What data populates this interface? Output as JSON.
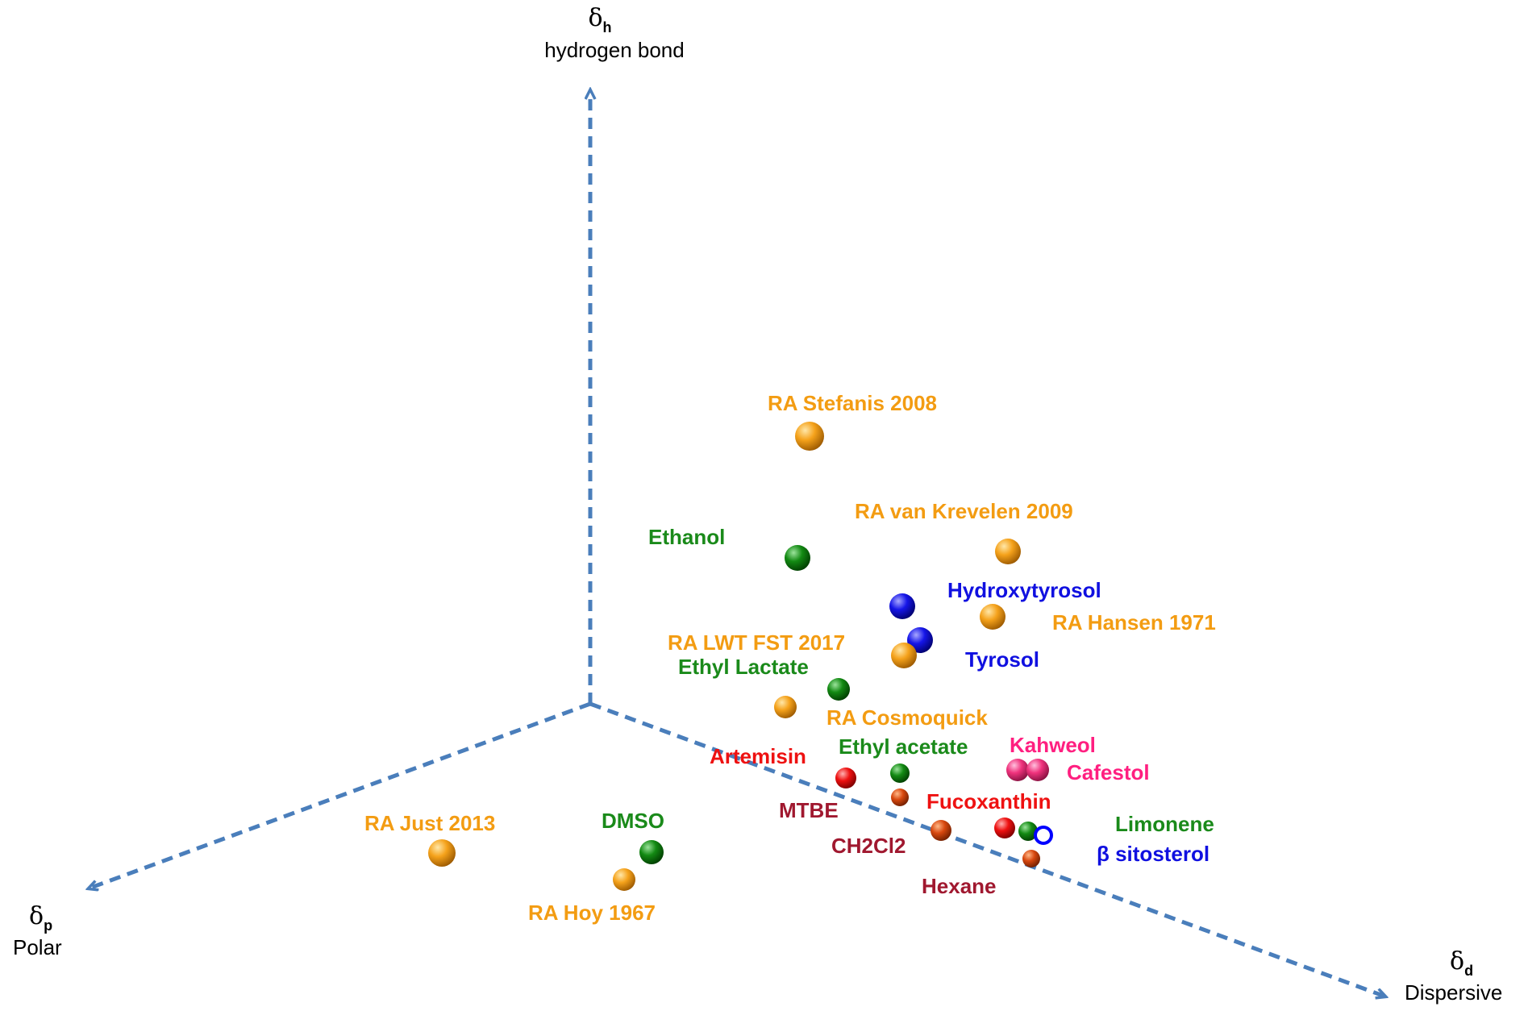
{
  "axes": {
    "h": {
      "symbol": "δ",
      "subscript": "h",
      "name": "hydrogen bond"
    },
    "p": {
      "symbol": "δ",
      "subscript": "p",
      "name": "Polar"
    },
    "d": {
      "symbol": "δ",
      "subscript": "d",
      "name": "Dispersive"
    }
  },
  "colors": {
    "axis": "#4a7ebb",
    "orange": "#ff9900",
    "green": "#008000",
    "blue": "#0000ff",
    "red": "#ff0000",
    "pink": "#ff3399",
    "maroon": "#a50021"
  },
  "labels": [
    {
      "text": "RA Stefanis 2008",
      "color": "#f39c12"
    },
    {
      "text": "RA van Krevelen 2009",
      "color": "#f39c12"
    },
    {
      "text": "Ethanol",
      "color": "#1a8a1a"
    },
    {
      "text": "Hydroxytyrosol",
      "color": "#1010e0"
    },
    {
      "text": "RA Hansen 1971",
      "color": "#f39c12"
    },
    {
      "text": "RA LWT FST 2017",
      "color": "#f39c12"
    },
    {
      "text": "Tyrosol",
      "color": "#1010e0"
    },
    {
      "text": "Ethyl Lactate",
      "color": "#1a8a1a"
    },
    {
      "text": "RA Cosmoquick",
      "color": "#f39c12"
    },
    {
      "text": "Artemisin",
      "color": "#ee1111"
    },
    {
      "text": "Ethyl acetate",
      "color": "#1a8a1a"
    },
    {
      "text": "Kahweol",
      "color": "#ff1f80"
    },
    {
      "text": "Cafestol",
      "color": "#ff1f80"
    },
    {
      "text": "MTBE",
      "color": "#a0182f"
    },
    {
      "text": "Fucoxanthin",
      "color": "#ee1111"
    },
    {
      "text": "Limonene",
      "color": "#1a8a1a"
    },
    {
      "text": "β sitosterol",
      "color": "#1010e0"
    },
    {
      "text": "CH2Cl2",
      "color": "#a0182f"
    },
    {
      "text": "Hexane",
      "color": "#a0182f"
    },
    {
      "text": "RA Just 2013",
      "color": "#f39c12"
    },
    {
      "text": "DMSO",
      "color": "#1a8a1a"
    },
    {
      "text": "RA Hoy 1967",
      "color": "#f39c12"
    }
  ],
  "markers": [
    {
      "name": "ra-stefanis-2008",
      "color": "orange",
      "style": "filled"
    },
    {
      "name": "ra-van-krevelen-2009",
      "color": "orange",
      "style": "filled"
    },
    {
      "name": "ethanol",
      "color": "green",
      "style": "filled"
    },
    {
      "name": "hydroxytyrosol",
      "color": "blue",
      "style": "filled"
    },
    {
      "name": "ra-hansen-1971",
      "color": "orange",
      "style": "filled"
    },
    {
      "name": "tyrosol",
      "color": "blue",
      "style": "filled"
    },
    {
      "name": "ra-lwt-fst-2017",
      "color": "orange",
      "style": "filled"
    },
    {
      "name": "ethyl-lactate",
      "color": "green",
      "style": "filled"
    },
    {
      "name": "ra-cosmoquick",
      "color": "orange",
      "style": "filled"
    },
    {
      "name": "artemisin",
      "color": "red",
      "style": "filled"
    },
    {
      "name": "ethyl-acetate",
      "color": "green",
      "style": "filled"
    },
    {
      "name": "mtbe",
      "color": "darkorange",
      "style": "filled"
    },
    {
      "name": "kahweol",
      "color": "pink",
      "style": "filled"
    },
    {
      "name": "cafestol",
      "color": "pink",
      "style": "filled"
    },
    {
      "name": "ch2cl2",
      "color": "darkorange",
      "style": "filled"
    },
    {
      "name": "fucoxanthin",
      "color": "red",
      "style": "filled"
    },
    {
      "name": "limonene",
      "color": "green",
      "style": "filled"
    },
    {
      "name": "beta-sitosterol",
      "color": "blue",
      "style": "ring"
    },
    {
      "name": "hexane",
      "color": "darkorange",
      "style": "filled"
    },
    {
      "name": "ra-just-2013",
      "color": "orange",
      "style": "filled"
    },
    {
      "name": "dmso",
      "color": "green",
      "style": "filled"
    },
    {
      "name": "ra-hoy-1967",
      "color": "orange",
      "style": "filled"
    }
  ]
}
